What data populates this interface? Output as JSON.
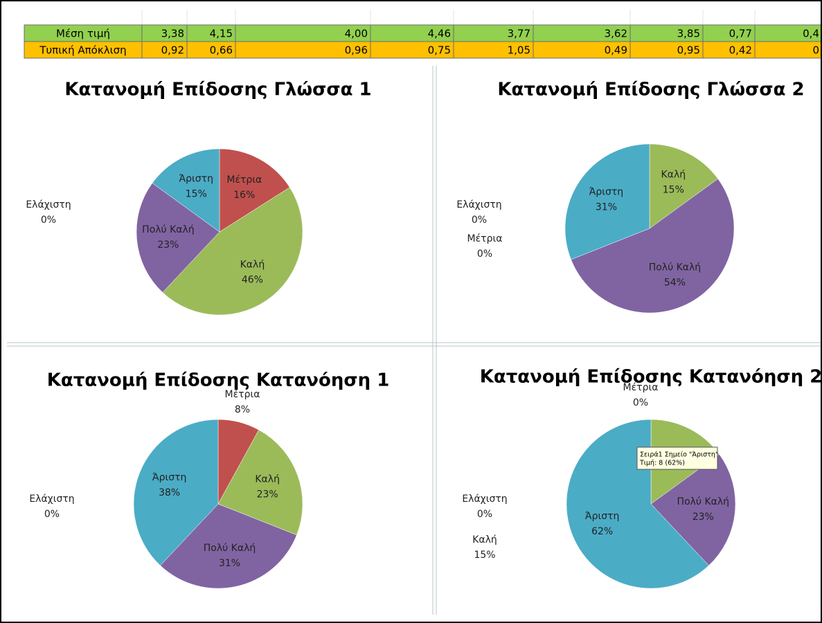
{
  "table": {
    "rows": [
      [
        "Μέση τιμή",
        "3,38",
        "4,15",
        "4,00",
        "4,46",
        "3,77",
        "3,62",
        "3,85",
        "0,77",
        "0,4"
      ],
      [
        "Τυπική Απόκλιση",
        "0,92",
        "0,66",
        "0,96",
        "0,75",
        "1,05",
        "0,49",
        "0,95",
        "0,42",
        "0"
      ]
    ]
  },
  "chart_data": [
    {
      "type": "pie",
      "title": "Κατανομή Επίδοσης Γλώσσα 1",
      "categories": [
        "Ελάχιστη",
        "Μέτρια",
        "Καλή",
        "Πολύ Καλή",
        "Άριστη"
      ],
      "values": [
        0,
        16,
        46,
        23,
        15
      ],
      "value_labels": [
        "0%",
        "16%",
        "46%",
        "23%",
        "15%"
      ],
      "colors": [
        "#4f81bd",
        "#c0504d",
        "#9bbb59",
        "#8064a2",
        "#4bacc6"
      ]
    },
    {
      "type": "pie",
      "title": "Κατανομή Επίδοσης Γλώσσα 2",
      "categories": [
        "Ελάχιστη",
        "Μέτρια",
        "Καλή",
        "Πολύ Καλή",
        "Άριστη"
      ],
      "values": [
        0,
        0,
        15,
        54,
        31
      ],
      "value_labels": [
        "0%",
        "0%",
        "15%",
        "54%",
        "31%"
      ],
      "colors": [
        "#4f81bd",
        "#c0504d",
        "#9bbb59",
        "#8064a2",
        "#4bacc6"
      ]
    },
    {
      "type": "pie",
      "title": "Κατανομή Επίδοσης Κατανόηση 1",
      "categories": [
        "Ελάχιστη",
        "Μέτρια",
        "Καλή",
        "Πολύ Καλή",
        "Άριστη"
      ],
      "values": [
        0,
        8,
        23,
        31,
        38
      ],
      "value_labels": [
        "0%",
        "8%",
        "23%",
        "31%",
        "38%"
      ],
      "colors": [
        "#4f81bd",
        "#c0504d",
        "#9bbb59",
        "#8064a2",
        "#4bacc6"
      ]
    },
    {
      "type": "pie",
      "title": "Κατανομή Επίδοσης Κατανόηση 2",
      "categories": [
        "Ελάχιστη",
        "Μέτρια",
        "Καλή",
        "Πολύ Καλή",
        "Άριστη"
      ],
      "values": [
        0,
        0,
        15,
        23,
        62
      ],
      "value_labels": [
        "0%",
        "0%",
        "15%",
        "23%",
        "62%"
      ],
      "colors": [
        "#4f81bd",
        "#c0504d",
        "#9bbb59",
        "#8064a2",
        "#4bacc6"
      ],
      "tooltip": [
        "Σειρά1 Σημείο \"Άριστη\"",
        "Τιμή: 8 (62%)"
      ]
    }
  ]
}
